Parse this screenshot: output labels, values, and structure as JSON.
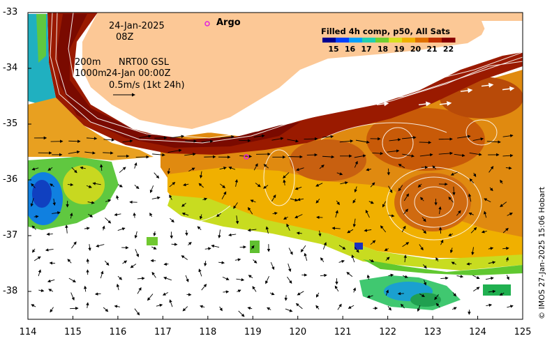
{
  "map": {
    "product_title": "Filled 4h comp, p50, All Sats",
    "date_line": "24-Jan-2025",
    "hour_line": "08Z",
    "contour_200": "200m",
    "contour_1000": "1000m",
    "model_label": "NRT00 GSL",
    "model_time": "24-Jan 00:00Z",
    "scale_label": "0.5m/s (1kt 24h)",
    "argo_label": "Argo",
    "credit": "© IMOS 27-Jan-2025 15:06 Hobart",
    "colorbar_ticks": [
      "15",
      "16",
      "17",
      "18",
      "19",
      "20",
      "21",
      "22"
    ],
    "colorbar_colors": [
      "#00008f",
      "#0040ff",
      "#00a0ff",
      "#20d0b0",
      "#70d030",
      "#d8e020",
      "#f0b000",
      "#e07000",
      "#c03000",
      "#8a0000"
    ],
    "lon_ticks": [
      "114",
      "115",
      "116",
      "117",
      "118",
      "119",
      "120",
      "121",
      "122",
      "123",
      "124",
      "125"
    ],
    "lat_ticks": [
      "-33",
      "-34",
      "-35",
      "-36",
      "-37",
      "-38"
    ],
    "land_color": "#fcc896"
  }
}
